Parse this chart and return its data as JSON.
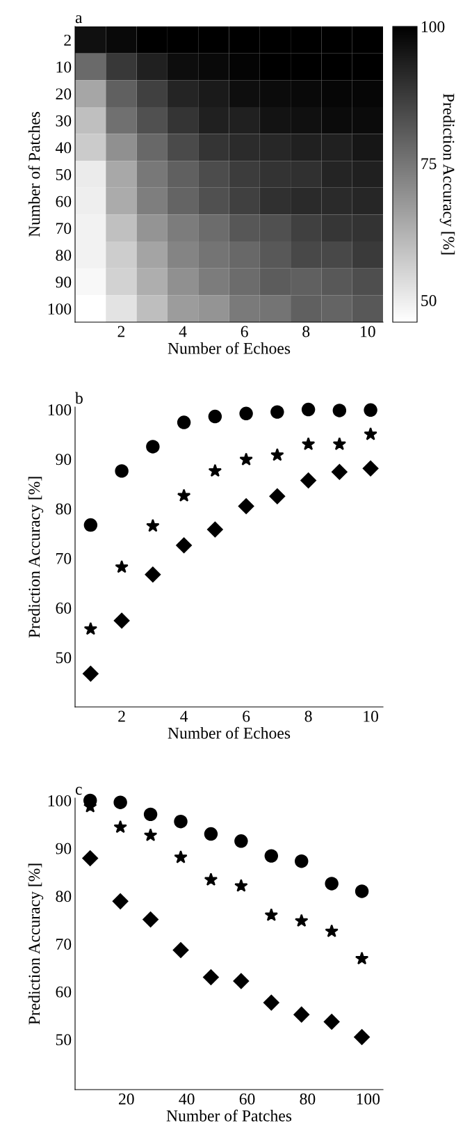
{
  "chart_data": [
    {
      "type": "heatmap",
      "title": "a",
      "xlabel": "Number of Echoes",
      "ylabel": "Number of Patches",
      "clabel": "Prediction Accuracy [%]",
      "categories": [
        null,
        "2",
        null,
        "4",
        null,
        "6",
        null,
        "8",
        null,
        "10"
      ],
      "y_categories": [
        "2",
        "10",
        "20",
        "30",
        "40",
        "50",
        "60",
        "70",
        "80",
        "90",
        "100"
      ],
      "cells": [
        [
          96.6,
          97.9,
          100,
          100,
          100,
          100,
          100,
          100,
          100,
          100
        ],
        [
          77.6,
          88.1,
          93.2,
          97.2,
          97.9,
          99,
          100,
          100,
          100,
          100
        ],
        [
          64.8,
          79.7,
          86.4,
          92.4,
          94.5,
          97,
          97.5,
          97.9,
          98.7,
          98.7
        ],
        [
          59.6,
          76.3,
          83.1,
          89,
          93.2,
          93.2,
          95.8,
          96.6,
          97.5,
          97.5
        ],
        [
          57,
          69.5,
          78,
          84.3,
          89,
          90.9,
          91.7,
          93.2,
          93.2,
          95.3
        ],
        [
          50.4,
          64.4,
          74.6,
          79.7,
          83.9,
          87.3,
          89.2,
          89.8,
          92.4,
          93.2
        ],
        [
          49.6,
          63.8,
          73.3,
          78.8,
          83.1,
          86.4,
          89.8,
          91.1,
          91.1,
          91.9
        ],
        [
          48.8,
          59.3,
          68.7,
          73.7,
          77.1,
          81.6,
          83.1,
          86.4,
          88.6,
          89.2
        ],
        [
          48.8,
          56.6,
          65.3,
          72,
          75.4,
          78,
          81.4,
          84.8,
          84.8,
          87.7
        ],
        [
          47.5,
          55.5,
          63.2,
          69.5,
          73.7,
          77.1,
          80.5,
          79.7,
          81.4,
          83.5
        ],
        [
          46,
          52.1,
          59.8,
          67,
          68.7,
          74.2,
          75.4,
          79.7,
          78.8,
          81.4
        ]
      ],
      "clim": [
        46,
        100
      ],
      "cticks": [
        50,
        75,
        100
      ]
    },
    {
      "type": "scatter",
      "title": "b",
      "xlabel": "Number of Echoes",
      "ylabel": "Prediction Accuracy [%]",
      "x": [
        1,
        2,
        3,
        4,
        5,
        6,
        7,
        8,
        9,
        10
      ],
      "xlim": [
        0.5,
        10.4
      ],
      "xticks": [
        2,
        4,
        6,
        8,
        10
      ],
      "ylim": [
        40,
        100.5
      ],
      "yticks": [
        50,
        60,
        70,
        80,
        90,
        100
      ],
      "series": [
        {
          "color": "#000000",
          "marker": "circle",
          "values": [
            76.7,
            87.6,
            92.5,
            97.4,
            98.6,
            99.2,
            99.5,
            100,
            99.8,
            99.9
          ]
        },
        {
          "color": "#000000",
          "marker": "star",
          "values": [
            55.7,
            68.2,
            76.5,
            82.6,
            87.6,
            89.9,
            90.8,
            93,
            93,
            95
          ]
        },
        {
          "color": "#000000",
          "marker": "diamond",
          "values": [
            46.7,
            57.4,
            66.7,
            72.6,
            75.8,
            80.5,
            82.5,
            85.7,
            87.4,
            88.1
          ]
        }
      ]
    },
    {
      "type": "scatter",
      "title": "c",
      "xlabel": "Number of Patches",
      "ylabel": "Prediction Accuracy [%]",
      "x": [
        8,
        18,
        28,
        38,
        48,
        58,
        68,
        78,
        88,
        98
      ],
      "xlim": [
        3,
        105
      ],
      "xticks": [
        20,
        40,
        60,
        80,
        100
      ],
      "ylim": [
        39.5,
        100.5
      ],
      "yticks": [
        50,
        60,
        70,
        80,
        90,
        100
      ],
      "series": [
        {
          "color": "#000000",
          "marker": "circle",
          "values": [
            100,
            99.6,
            97.1,
            95.6,
            93,
            91.5,
            88.4,
            87.3,
            82.6,
            81
          ]
        },
        {
          "color": "#000000",
          "marker": "star",
          "values": [
            98.7,
            94.4,
            92.7,
            88.1,
            83.4,
            82.1,
            76,
            74.8,
            72.6,
            66.9
          ]
        },
        {
          "color": "#000000",
          "marker": "diamond",
          "values": [
            87.9,
            78.9,
            75.1,
            68.7,
            63,
            62.2,
            57.7,
            55.2,
            53.7,
            50.5
          ]
        }
      ]
    }
  ]
}
